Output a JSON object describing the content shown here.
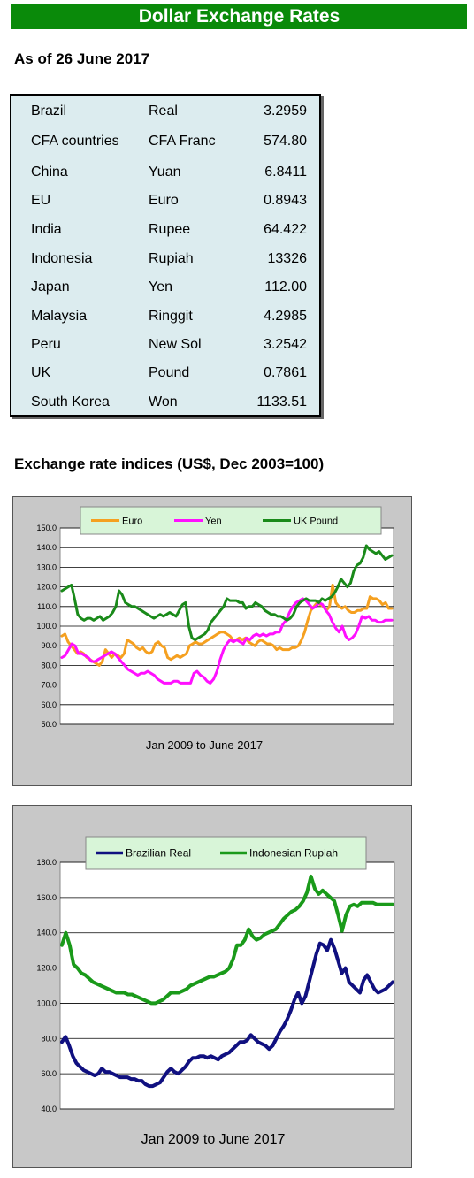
{
  "title": "Dollar Exchange Rates",
  "as_of": "As of 26 June 2017",
  "rates": [
    {
      "country": "Brazil",
      "currency": "Real",
      "rate": "3.2959"
    },
    {
      "country": "CFA countries",
      "currency": "CFA Franc",
      "rate": "574.80"
    },
    {
      "country": "China",
      "currency": "Yuan",
      "rate": "6.8411"
    },
    {
      "country": "EU",
      "currency": "Euro",
      "rate": "0.8943"
    },
    {
      "country": "India",
      "currency": "Rupee",
      "rate": "64.422"
    },
    {
      "country": "Indonesia",
      "currency": "Rupiah",
      "rate": "13326"
    },
    {
      "country": "Japan",
      "currency": "Yen",
      "rate": "112.00"
    },
    {
      "country": "Malaysia",
      "currency": "Ringgit",
      "rate": "4.2985"
    },
    {
      "country": "Peru",
      "currency": "New Sol",
      "rate": "3.2542"
    },
    {
      "country": "UK",
      "currency": "Pound",
      "rate": "0.7861"
    },
    {
      "country": "South Korea",
      "currency": "Won",
      "rate": "1133.51"
    }
  ],
  "indices_heading": "Exchange rate indices (US$, Dec 2003=100)",
  "chart_data": [
    {
      "type": "line",
      "xlabel": "Jan 2009  to June 2017",
      "ylim": [
        50,
        150
      ],
      "yticks": [
        "50.0",
        "60.0",
        "70.0",
        "80.0",
        "90.0",
        "100.0",
        "110.0",
        "120.0",
        "130.0",
        "140.0",
        "150.0"
      ],
      "legend_position": "top",
      "grid": true,
      "series": [
        {
          "name": "Euro",
          "color": "#f5a020",
          "values": [
            95,
            96,
            92,
            90,
            88,
            86,
            87,
            86,
            84,
            83,
            82,
            81,
            80,
            82,
            88,
            86,
            84,
            86,
            85,
            84,
            86,
            93,
            92,
            91,
            89,
            88,
            89,
            87,
            86,
            87,
            91,
            92,
            90,
            89,
            84,
            83,
            84,
            85,
            84,
            85,
            86,
            90,
            91,
            92,
            91,
            91,
            92,
            93,
            94,
            95,
            96,
            97,
            97,
            96,
            95,
            93,
            93,
            94,
            93,
            94,
            92,
            91,
            90,
            92,
            93,
            92,
            91,
            91,
            90,
            88,
            89,
            88,
            88,
            88,
            89,
            89,
            90,
            93,
            97,
            103,
            108,
            110,
            112,
            111,
            110,
            108,
            110,
            121,
            112,
            110,
            109,
            110,
            108,
            107,
            107,
            108,
            108,
            109,
            109,
            115,
            114,
            114,
            113,
            111,
            112,
            109,
            109
          ]
        },
        {
          "name": "Yen",
          "color": "#ff10ff",
          "values": [
            84,
            85,
            88,
            91,
            90,
            86,
            86,
            85,
            84,
            82,
            82,
            83,
            84,
            85,
            86,
            87,
            86,
            84,
            82,
            80,
            78,
            77,
            76,
            75,
            76,
            76,
            77,
            76,
            75,
            73,
            72,
            71,
            71,
            71,
            72,
            72,
            71,
            71,
            71,
            71,
            76,
            77,
            75,
            74,
            72,
            71,
            73,
            77,
            83,
            88,
            91,
            93,
            92,
            93,
            92,
            91,
            94,
            93,
            95,
            96,
            95,
            96,
            95,
            96,
            96,
            97,
            97,
            101,
            103,
            107,
            110,
            112,
            113,
            114,
            113,
            111,
            109,
            110,
            112,
            111,
            108,
            106,
            102,
            99,
            97,
            100,
            95,
            93,
            94,
            96,
            100,
            105,
            104,
            105,
            103,
            103,
            102,
            102,
            103,
            103,
            103
          ]
        },
        {
          "name": "UK Pound",
          "color": "#1a8a1a",
          "values": [
            118,
            119,
            120,
            121,
            114,
            106,
            104,
            103,
            104,
            104,
            103,
            104,
            105,
            103,
            104,
            105,
            107,
            110,
            118,
            116,
            112,
            111,
            110,
            110,
            109,
            108,
            107,
            106,
            105,
            104,
            105,
            106,
            105,
            106,
            107,
            106,
            105,
            108,
            111,
            112,
            100,
            94,
            93,
            94,
            95,
            96,
            98,
            102,
            104,
            106,
            108,
            110,
            114,
            113,
            113,
            113,
            112,
            112,
            109,
            110,
            110,
            112,
            111,
            110,
            108,
            107,
            106,
            106,
            105,
            105,
            104,
            103,
            104,
            106,
            110,
            112,
            113,
            114,
            113,
            113,
            113,
            112,
            114,
            113,
            114,
            115,
            117,
            120,
            124,
            122,
            120,
            122,
            128,
            131,
            132,
            135,
            141,
            139,
            138,
            137,
            138,
            136,
            134,
            135,
            136
          ]
        }
      ]
    },
    {
      "type": "line",
      "xlabel": "Jan 2009 to June 2017",
      "ylim": [
        40,
        180
      ],
      "yticks": [
        "40.0",
        "60.0",
        "80.0",
        "100.0",
        "120.0",
        "140.0",
        "160.0",
        "180.0"
      ],
      "legend_position": "top",
      "grid": true,
      "series": [
        {
          "name": "Brazilian Real",
          "color": "#101080",
          "values": [
            78,
            81,
            76,
            70,
            66,
            64,
            62,
            61,
            60,
            59,
            60,
            63,
            61,
            61,
            60,
            59,
            58,
            58,
            58,
            57,
            57,
            56,
            56,
            54,
            53,
            53,
            54,
            55,
            58,
            61,
            63,
            61,
            60,
            62,
            64,
            67,
            69,
            69,
            70,
            70,
            69,
            70,
            69,
            68,
            70,
            71,
            72,
            74,
            76,
            78,
            78,
            79,
            82,
            80,
            78,
            77,
            76,
            74,
            76,
            80,
            84,
            87,
            91,
            96,
            102,
            106,
            100,
            104,
            112,
            120,
            128,
            134,
            133,
            130,
            136,
            131,
            124,
            117,
            120,
            112,
            110,
            108,
            106,
            113,
            116,
            112,
            108,
            106,
            107,
            108,
            110,
            112
          ]
        },
        {
          "name": "Indonesian Rupiah",
          "color": "#1a9a1a",
          "values": [
            133,
            140,
            133,
            122,
            120,
            117,
            116,
            114,
            112,
            111,
            110,
            109,
            108,
            107,
            106,
            106,
            106,
            105,
            105,
            104,
            103,
            102,
            101,
            100,
            100,
            101,
            102,
            104,
            106,
            106,
            106,
            107,
            108,
            110,
            111,
            112,
            113,
            114,
            115,
            115,
            116,
            117,
            118,
            120,
            125,
            133,
            133,
            136,
            142,
            138,
            136,
            137,
            139,
            140,
            141,
            142,
            145,
            148,
            150,
            152,
            153,
            155,
            158,
            163,
            172,
            165,
            162,
            164,
            162,
            160,
            158,
            150,
            141,
            150,
            155,
            156,
            155,
            157,
            157,
            157,
            157,
            156,
            156,
            156,
            156,
            156
          ]
        }
      ]
    }
  ]
}
